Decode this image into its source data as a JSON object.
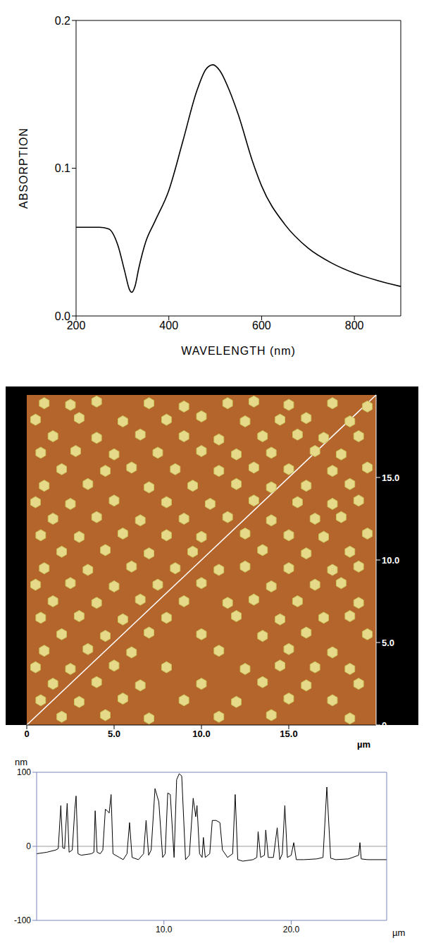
{
  "chart_data": [
    {
      "type": "line",
      "x_label": "WAVELENGTH (nm)",
      "y_label": "ABSORPTION",
      "color": "#000000",
      "x": [
        200,
        250,
        270,
        290,
        305,
        315,
        320,
        327,
        335,
        350,
        370,
        400,
        430,
        460,
        480,
        495,
        510,
        530,
        550,
        580,
        600,
        650,
        700,
        750,
        800,
        850,
        900
      ],
      "values": [
        0.06,
        0.06,
        0.059,
        0.048,
        0.03,
        0.018,
        0.016,
        0.02,
        0.032,
        0.05,
        0.064,
        0.085,
        0.118,
        0.152,
        0.167,
        0.17,
        0.166,
        0.153,
        0.136,
        0.105,
        0.088,
        0.062,
        0.046,
        0.036,
        0.029,
        0.024,
        0.02
      ],
      "xlim": [
        200,
        900
      ],
      "xticks": [
        200,
        400,
        600,
        800
      ],
      "ylim": [
        0,
        0.2
      ],
      "yticks": [
        {
          "value": 0,
          "label": "0.0"
        },
        {
          "value": 0.1,
          "label": "0.1"
        },
        {
          "value": 0.2,
          "label": "0.2"
        }
      ]
    },
    {
      "type": "scatter",
      "x_label": "µm",
      "color": "#e6d98a",
      "marker": "hexagon",
      "scan_line": [
        [
          0,
          0
        ],
        [
          20,
          20
        ]
      ],
      "points": [
        [
          1,
          19.5
        ],
        [
          2.5,
          19.4
        ],
        [
          4,
          19.6
        ],
        [
          7,
          19.5
        ],
        [
          9,
          19.3
        ],
        [
          11.5,
          19.5
        ],
        [
          13,
          19.6
        ],
        [
          15,
          19.4
        ],
        [
          17.5,
          19.5
        ],
        [
          19.5,
          19.3
        ],
        [
          0.5,
          18.5
        ],
        [
          3,
          18.6
        ],
        [
          5.5,
          18.4
        ],
        [
          8,
          18.5
        ],
        [
          10,
          18.7
        ],
        [
          12.5,
          18.4
        ],
        [
          14.5,
          18.5
        ],
        [
          16,
          18.6
        ],
        [
          18.5,
          18.4
        ],
        [
          1.5,
          17.5
        ],
        [
          4,
          17.4
        ],
        [
          6.5,
          17.6
        ],
        [
          9,
          17.5
        ],
        [
          11,
          17.3
        ],
        [
          13.5,
          17.5
        ],
        [
          15.5,
          17.6
        ],
        [
          17,
          17.4
        ],
        [
          19,
          17.5
        ],
        [
          0.8,
          16.5
        ],
        [
          2.8,
          16.6
        ],
        [
          5,
          16.4
        ],
        [
          7.5,
          16.5
        ],
        [
          10,
          16.6
        ],
        [
          12,
          16.4
        ],
        [
          14,
          16.5
        ],
        [
          16.5,
          16.6
        ],
        [
          18,
          16.4
        ],
        [
          2,
          15.5
        ],
        [
          4.5,
          15.4
        ],
        [
          6,
          15.6
        ],
        [
          8.5,
          15.5
        ],
        [
          11,
          15.4
        ],
        [
          13,
          15.6
        ],
        [
          15,
          15.5
        ],
        [
          17.5,
          15.4
        ],
        [
          19.5,
          15.6
        ],
        [
          1,
          14.5
        ],
        [
          3.5,
          14.6
        ],
        [
          7,
          14.4
        ],
        [
          9.5,
          14.5
        ],
        [
          12,
          14.6
        ],
        [
          14,
          14.4
        ],
        [
          16,
          14.5
        ],
        [
          18.5,
          14.6
        ],
        [
          0.5,
          13.5
        ],
        [
          2.5,
          13.4
        ],
        [
          5,
          13.6
        ],
        [
          8,
          13.5
        ],
        [
          10.5,
          13.4
        ],
        [
          13,
          13.6
        ],
        [
          15.5,
          13.5
        ],
        [
          17.5,
          13.4
        ],
        [
          19,
          13.6
        ],
        [
          1.5,
          12.5
        ],
        [
          4,
          12.6
        ],
        [
          6.5,
          12.4
        ],
        [
          9,
          12.5
        ],
        [
          11.5,
          12.6
        ],
        [
          14,
          12.4
        ],
        [
          16.5,
          12.5
        ],
        [
          18,
          12.6
        ],
        [
          0.8,
          11.5
        ],
        [
          3,
          11.4
        ],
        [
          5.5,
          11.6
        ],
        [
          8,
          11.5
        ],
        [
          10,
          11.4
        ],
        [
          12.5,
          11.6
        ],
        [
          15,
          11.5
        ],
        [
          17,
          11.4
        ],
        [
          19.5,
          11.6
        ],
        [
          2,
          10.5
        ],
        [
          4.5,
          10.6
        ],
        [
          7,
          10.4
        ],
        [
          9.5,
          10.5
        ],
        [
          13.5,
          10.6
        ],
        [
          16,
          10.4
        ],
        [
          18.5,
          10.5
        ],
        [
          1,
          9.5
        ],
        [
          3.5,
          9.4
        ],
        [
          6,
          9.6
        ],
        [
          8.5,
          9.5
        ],
        [
          11,
          9.4
        ],
        [
          12.5,
          9.6
        ],
        [
          15,
          9.5
        ],
        [
          17.5,
          9.4
        ],
        [
          19,
          9.6
        ],
        [
          0.5,
          8.5
        ],
        [
          2.5,
          8.6
        ],
        [
          5,
          8.4
        ],
        [
          7.5,
          8.5
        ],
        [
          10,
          8.6
        ],
        [
          14,
          8.4
        ],
        [
          16.5,
          8.5
        ],
        [
          18,
          8.6
        ],
        [
          1.5,
          7.5
        ],
        [
          4,
          7.4
        ],
        [
          6.5,
          7.6
        ],
        [
          9,
          7.5
        ],
        [
          11.5,
          7.4
        ],
        [
          13,
          7.6
        ],
        [
          15.5,
          7.5
        ],
        [
          19,
          7.4
        ],
        [
          0.8,
          6.5
        ],
        [
          3,
          6.6
        ],
        [
          5.5,
          6.4
        ],
        [
          8,
          6.5
        ],
        [
          12,
          6.6
        ],
        [
          14.5,
          6.4
        ],
        [
          17,
          6.5
        ],
        [
          18.5,
          6.6
        ],
        [
          2,
          5.5
        ],
        [
          4.5,
          5.4
        ],
        [
          7,
          5.6
        ],
        [
          10,
          5.5
        ],
        [
          13.5,
          5.4
        ],
        [
          16,
          5.6
        ],
        [
          19.5,
          5.5
        ],
        [
          1,
          4.5
        ],
        [
          3.5,
          4.6
        ],
        [
          6,
          4.4
        ],
        [
          11,
          4.5
        ],
        [
          15,
          4.6
        ],
        [
          17.5,
          4.4
        ],
        [
          0.5,
          3.5
        ],
        [
          2.5,
          3.4
        ],
        [
          5,
          3.6
        ],
        [
          8,
          3.5
        ],
        [
          12.5,
          3.4
        ],
        [
          14.5,
          3.6
        ],
        [
          16.5,
          3.5
        ],
        [
          18.5,
          3.4
        ],
        [
          1.5,
          2.5
        ],
        [
          4,
          2.6
        ],
        [
          6.5,
          2.4
        ],
        [
          10,
          2.5
        ],
        [
          13.5,
          2.6
        ],
        [
          16,
          2.4
        ],
        [
          19,
          2.5
        ],
        [
          0.8,
          1.5
        ],
        [
          3,
          1.4
        ],
        [
          5.5,
          1.6
        ],
        [
          9,
          1.5
        ],
        [
          12,
          1.4
        ],
        [
          15,
          1.6
        ],
        [
          17.5,
          1.5
        ],
        [
          2,
          0.5
        ],
        [
          4.5,
          0.6
        ],
        [
          7,
          0.4
        ],
        [
          11,
          0.5
        ],
        [
          14,
          0.6
        ],
        [
          18.5,
          0.4
        ]
      ],
      "xlim": [
        0,
        20
      ],
      "xticks": [
        0,
        {
          "value": 5,
          "label": "5.0"
        },
        {
          "value": 10,
          "label": "10.0"
        },
        {
          "value": 15,
          "label": "15.0"
        }
      ],
      "ylim": [
        0,
        20
      ],
      "yticks": [
        0,
        {
          "value": 5,
          "label": "5.0"
        },
        {
          "value": 10,
          "label": "10.0"
        },
        {
          "value": 15,
          "label": "15.0"
        }
      ]
    },
    {
      "type": "line",
      "x_label": "µm",
      "y_label": "nm",
      "color": "#000000",
      "reference_line": 0,
      "x": [
        0,
        0.8,
        1.5,
        1.7,
        1.9,
        2.05,
        2.2,
        2.4,
        2.55,
        2.8,
        3.0,
        3.1,
        3.25,
        3.5,
        4.3,
        4.5,
        4.6,
        4.75,
        5.0,
        5.2,
        5.4,
        5.55,
        5.7,
        5.85,
        6.0,
        6.5,
        6.8,
        7.1,
        7.3,
        7.5,
        8.0,
        8.4,
        8.6,
        8.8,
        9.0,
        9.3,
        9.6,
        9.9,
        10.1,
        10.3,
        10.5,
        10.8,
        11.0,
        11.2,
        11.4,
        11.7,
        12.0,
        12.3,
        12.5,
        12.6,
        12.8,
        13.0,
        13.1,
        13.25,
        13.6,
        13.8,
        14.1,
        14.4,
        14.6,
        15.0,
        15.4,
        15.6,
        15.8,
        16.2,
        17.0,
        17.3,
        17.4,
        17.6,
        17.9,
        18.0,
        18.2,
        18.6,
        18.9,
        19.1,
        19.3,
        19.5,
        19.7,
        20.0,
        20.2,
        20.4,
        21.0,
        22.0,
        22.5,
        22.8,
        23.1,
        23.5,
        24.5,
        25.3,
        25.4,
        25.5,
        26.0,
        27.5
      ],
      "values": [
        -10,
        -8,
        -5,
        -3,
        55,
        -2,
        -3,
        58,
        -8,
        -5,
        50,
        68,
        -10,
        -12,
        -10,
        -8,
        48,
        -8,
        -10,
        -5,
        50,
        48,
        45,
        70,
        -10,
        -15,
        -18,
        -10,
        32,
        -15,
        -18,
        -10,
        35,
        -12,
        -5,
        78,
        60,
        -15,
        -10,
        72,
        70,
        -15,
        90,
        98,
        95,
        -18,
        -12,
        65,
        40,
        55,
        -10,
        -15,
        12,
        -15,
        -10,
        35,
        35,
        32,
        -5,
        -15,
        -10,
        70,
        -18,
        -20,
        -18,
        -15,
        20,
        -15,
        -12,
        22,
        -15,
        -15,
        25,
        -18,
        -10,
        55,
        -15,
        -12,
        5,
        -18,
        -18,
        -17,
        -15,
        80,
        -16,
        -18,
        -17,
        -12,
        5,
        -17,
        -18,
        -18
      ],
      "xlim": [
        0,
        27.5
      ],
      "xticks": [
        {
          "value": 10,
          "label": "10.0"
        },
        {
          "value": 20,
          "label": "20.0"
        }
      ],
      "ylim": [
        -100,
        100
      ],
      "yticks": [
        -100,
        0,
        100
      ]
    }
  ]
}
